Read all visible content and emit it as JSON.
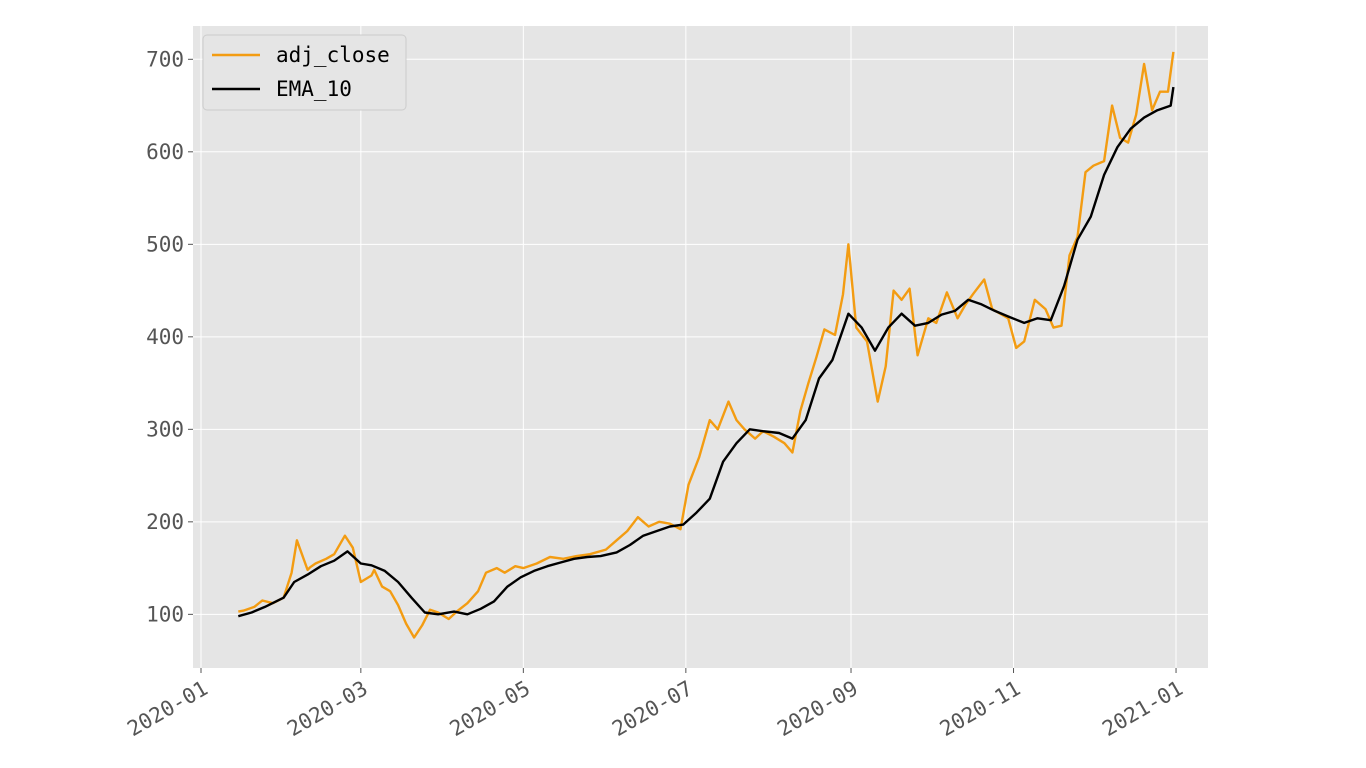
{
  "chart_data": {
    "type": "line",
    "title": "",
    "xlabel": "",
    "ylabel": "",
    "grid": true,
    "legend_position": "top-left",
    "xlim": [
      "2019-12-29",
      "2021-01-13"
    ],
    "ylim": [
      42,
      736
    ],
    "x_ticks": [
      "2020-01",
      "2020-03",
      "2020-05",
      "2020-07",
      "2020-09",
      "2020-11",
      "2021-01"
    ],
    "x_tick_dates": [
      "2020-01-01",
      "2020-03-01",
      "2020-05-01",
      "2020-07-01",
      "2020-09-01",
      "2020-11-01",
      "2021-01-01"
    ],
    "y_ticks": [
      100,
      200,
      300,
      400,
      500,
      600,
      700
    ],
    "colors": {
      "adj_close": "#f39c12",
      "EMA_10": "#000000",
      "background": "#e5e5e5",
      "grid": "#ffffff"
    },
    "series": [
      {
        "name": "adj_close",
        "x": [
          "2020-01-15",
          "2020-01-17",
          "2020-01-21",
          "2020-01-24",
          "2020-01-28",
          "2020-02-01",
          "2020-02-04",
          "2020-02-06",
          "2020-02-10",
          "2020-02-11",
          "2020-02-13",
          "2020-02-17",
          "2020-02-20",
          "2020-02-24",
          "2020-02-27",
          "2020-03-01",
          "2020-03-05",
          "2020-03-06",
          "2020-03-09",
          "2020-03-12",
          "2020-03-15",
          "2020-03-18",
          "2020-03-21",
          "2020-03-24",
          "2020-03-27",
          "2020-03-30",
          "2020-04-03",
          "2020-04-06",
          "2020-04-10",
          "2020-04-14",
          "2020-04-17",
          "2020-04-21",
          "2020-04-24",
          "2020-04-28",
          "2020-05-01",
          "2020-05-06",
          "2020-05-11",
          "2020-05-16",
          "2020-05-21",
          "2020-05-26",
          "2020-06-01",
          "2020-06-05",
          "2020-06-09",
          "2020-06-13",
          "2020-06-17",
          "2020-06-21",
          "2020-06-25",
          "2020-06-29",
          "2020-07-02",
          "2020-07-06",
          "2020-07-10",
          "2020-07-13",
          "2020-07-17",
          "2020-07-20",
          "2020-07-23",
          "2020-07-27",
          "2020-07-30",
          "2020-08-03",
          "2020-08-07",
          "2020-08-10",
          "2020-08-13",
          "2020-08-16",
          "2020-08-19",
          "2020-08-22",
          "2020-08-26",
          "2020-08-29",
          "2020-08-31",
          "2020-09-03",
          "2020-09-07",
          "2020-09-11",
          "2020-09-14",
          "2020-09-17",
          "2020-09-20",
          "2020-09-23",
          "2020-09-26",
          "2020-09-30",
          "2020-10-03",
          "2020-10-07",
          "2020-10-11",
          "2020-10-14",
          "2020-10-17",
          "2020-10-21",
          "2020-10-24",
          "2020-10-27",
          "2020-10-30",
          "2020-11-02",
          "2020-11-05",
          "2020-11-09",
          "2020-11-13",
          "2020-11-16",
          "2020-11-19",
          "2020-11-22",
          "2020-11-25",
          "2020-11-28",
          "2020-12-01",
          "2020-12-05",
          "2020-12-08",
          "2020-12-11",
          "2020-12-14",
          "2020-12-17",
          "2020-12-20",
          "2020-12-23",
          "2020-12-26",
          "2020-12-29",
          "2020-12-31"
        ],
        "values": [
          103,
          104,
          108,
          115,
          112,
          118,
          145,
          180,
          148,
          151,
          155,
          160,
          165,
          185,
          172,
          135,
          142,
          148,
          130,
          125,
          110,
          90,
          75,
          88,
          105,
          102,
          95,
          103,
          112,
          125,
          145,
          150,
          145,
          152,
          150,
          155,
          162,
          160,
          163,
          165,
          170,
          180,
          190,
          205,
          195,
          200,
          198,
          192,
          240,
          270,
          310,
          300,
          330,
          310,
          300,
          290,
          298,
          292,
          285,
          275,
          320,
          350,
          378,
          408,
          402,
          446,
          500,
          410,
          395,
          330,
          368,
          450,
          440,
          452,
          380,
          420,
          415,
          448,
          420,
          435,
          447,
          462,
          430,
          425,
          420,
          388,
          395,
          440,
          430,
          410,
          412,
          488,
          508,
          578,
          585,
          590,
          650,
          615,
          610,
          640,
          695,
          645,
          665,
          665,
          708
        ]
      },
      {
        "name": "EMA_10",
        "x": [
          "2020-01-15",
          "2020-01-20",
          "2020-01-25",
          "2020-02-01",
          "2020-02-05",
          "2020-02-10",
          "2020-02-15",
          "2020-02-20",
          "2020-02-25",
          "2020-03-01",
          "2020-03-05",
          "2020-03-10",
          "2020-03-15",
          "2020-03-20",
          "2020-03-25",
          "2020-03-30",
          "2020-04-05",
          "2020-04-10",
          "2020-04-15",
          "2020-04-20",
          "2020-04-25",
          "2020-04-30",
          "2020-05-05",
          "2020-05-10",
          "2020-05-15",
          "2020-05-20",
          "2020-05-25",
          "2020-05-30",
          "2020-06-05",
          "2020-06-10",
          "2020-06-15",
          "2020-06-20",
          "2020-06-25",
          "2020-06-30",
          "2020-07-05",
          "2020-07-10",
          "2020-07-15",
          "2020-07-20",
          "2020-07-25",
          "2020-07-30",
          "2020-08-05",
          "2020-08-10",
          "2020-08-15",
          "2020-08-20",
          "2020-08-25",
          "2020-08-31",
          "2020-09-05",
          "2020-09-10",
          "2020-09-15",
          "2020-09-20",
          "2020-09-25",
          "2020-09-30",
          "2020-10-05",
          "2020-10-10",
          "2020-10-15",
          "2020-10-20",
          "2020-10-25",
          "2020-10-30",
          "2020-11-05",
          "2020-11-10",
          "2020-11-15",
          "2020-11-20",
          "2020-11-25",
          "2020-11-30",
          "2020-12-05",
          "2020-12-10",
          "2020-12-15",
          "2020-12-20",
          "2020-12-25",
          "2020-12-30",
          "2020-12-31"
        ],
        "values": [
          98,
          102,
          108,
          118,
          135,
          143,
          152,
          158,
          168,
          155,
          153,
          147,
          135,
          118,
          102,
          100,
          103,
          100,
          106,
          114,
          130,
          140,
          147,
          152,
          156,
          160,
          162,
          163,
          167,
          175,
          185,
          190,
          195,
          197,
          210,
          225,
          265,
          285,
          300,
          298,
          296,
          290,
          310,
          355,
          375,
          425,
          410,
          385,
          410,
          425,
          412,
          415,
          424,
          428,
          440,
          435,
          428,
          422,
          415,
          420,
          418,
          455,
          505,
          530,
          575,
          605,
          625,
          637,
          645,
          650,
          670
        ]
      }
    ]
  }
}
